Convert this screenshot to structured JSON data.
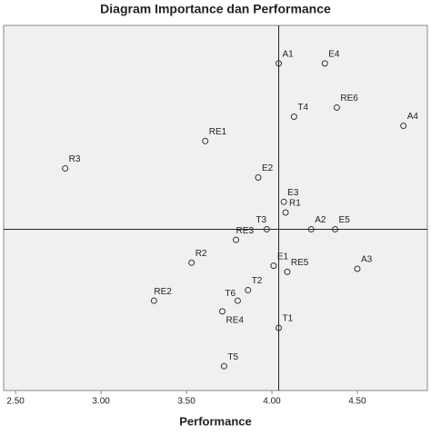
{
  "chart_data": {
    "type": "scatter",
    "title": "Diagram Importance dan Performance",
    "x_label": "Performance",
    "labels": [
      "A1",
      "E4",
      "RE6",
      "T4",
      "A4",
      "RE1",
      "R3",
      "E2",
      "E3",
      "R1",
      "T3",
      "A2",
      "E5",
      "RE3",
      "R2",
      "E1",
      "RE5",
      "A3",
      "T2",
      "RE2",
      "T6",
      "RE4",
      "T1",
      "T5"
    ],
    "x": [
      4.04,
      4.31,
      4.38,
      4.13,
      4.77,
      3.61,
      2.79,
      3.92,
      4.07,
      4.08,
      3.97,
      4.23,
      4.37,
      3.79,
      3.53,
      4.01,
      4.09,
      4.5,
      3.86,
      3.31,
      3.8,
      3.71,
      4.04,
      3.72
    ],
    "y": [
      4.475,
      4.475,
      4.33,
      4.3,
      4.27,
      4.22,
      4.13,
      4.1,
      4.02,
      3.985,
      3.93,
      3.93,
      3.93,
      3.895,
      3.82,
      3.81,
      3.79,
      3.8,
      3.73,
      3.695,
      3.695,
      3.66,
      3.606,
      3.48
    ],
    "xlim": [
      2.43,
      4.91
    ],
    "ylim": [
      3.4,
      4.6
    ],
    "xticks": [
      {
        "value": 2.5,
        "label": "2.50"
      },
      {
        "value": 3,
        "label": "3.00"
      },
      {
        "value": 3.5,
        "label": "3.50"
      },
      {
        "value": 4,
        "label": "4.00"
      },
      {
        "value": 4.5,
        "label": "4.50"
      }
    ],
    "x_reference": 4.04,
    "y_reference": 3.93,
    "color": "#333333"
  }
}
